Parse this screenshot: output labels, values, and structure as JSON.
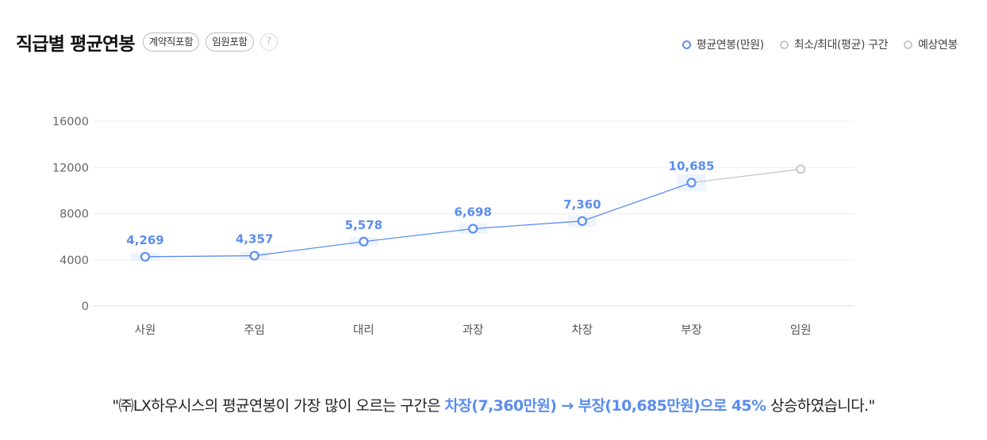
{
  "header": {
    "title": "직급별 평균연봉",
    "chips": [
      "계약직포함",
      "임원포함"
    ],
    "help_symbol": "?"
  },
  "legend": {
    "items": [
      {
        "label": "평균연봉(만원)",
        "color": "#5b8def"
      },
      {
        "label": "최소/최대(평균) 구간",
        "color": "#c8c8c8"
      },
      {
        "label": "예상연봉",
        "color": "#c8c8c8"
      }
    ]
  },
  "chart_data": {
    "type": "line",
    "categories": [
      "사원",
      "주임",
      "대리",
      "과장",
      "차장",
      "부장",
      "임원"
    ],
    "series": [
      {
        "name": "평균연봉(만원)",
        "values": [
          4269,
          4357,
          5578,
          6698,
          7360,
          10685,
          null
        ],
        "labels": [
          "4,269",
          "4,357",
          "5,578",
          "6,698",
          "7,360",
          "10,685",
          ""
        ],
        "color": "#5b8def"
      },
      {
        "name": "예상연봉",
        "values": [
          null,
          null,
          null,
          null,
          null,
          10685,
          11850
        ],
        "color": "#c8c8c8"
      }
    ],
    "yticks": [
      0,
      4000,
      8000,
      12000,
      16000
    ],
    "ylim": [
      0,
      16000
    ],
    "grid": true,
    "legend_position": "top-right"
  },
  "footer": {
    "pre": "\"㈜LX하우시스의 평균연봉이 가장 많이 오르는 구간은 ",
    "highlight": "차장(7,360만원) → 부장(10,685만원)으로 45%",
    "post": " 상승하였습니다.\""
  },
  "colors": {
    "accent": "#5b8def",
    "muted": "#c8c8c8",
    "grid": "#eeeeee",
    "band": "#eaf1fd"
  }
}
